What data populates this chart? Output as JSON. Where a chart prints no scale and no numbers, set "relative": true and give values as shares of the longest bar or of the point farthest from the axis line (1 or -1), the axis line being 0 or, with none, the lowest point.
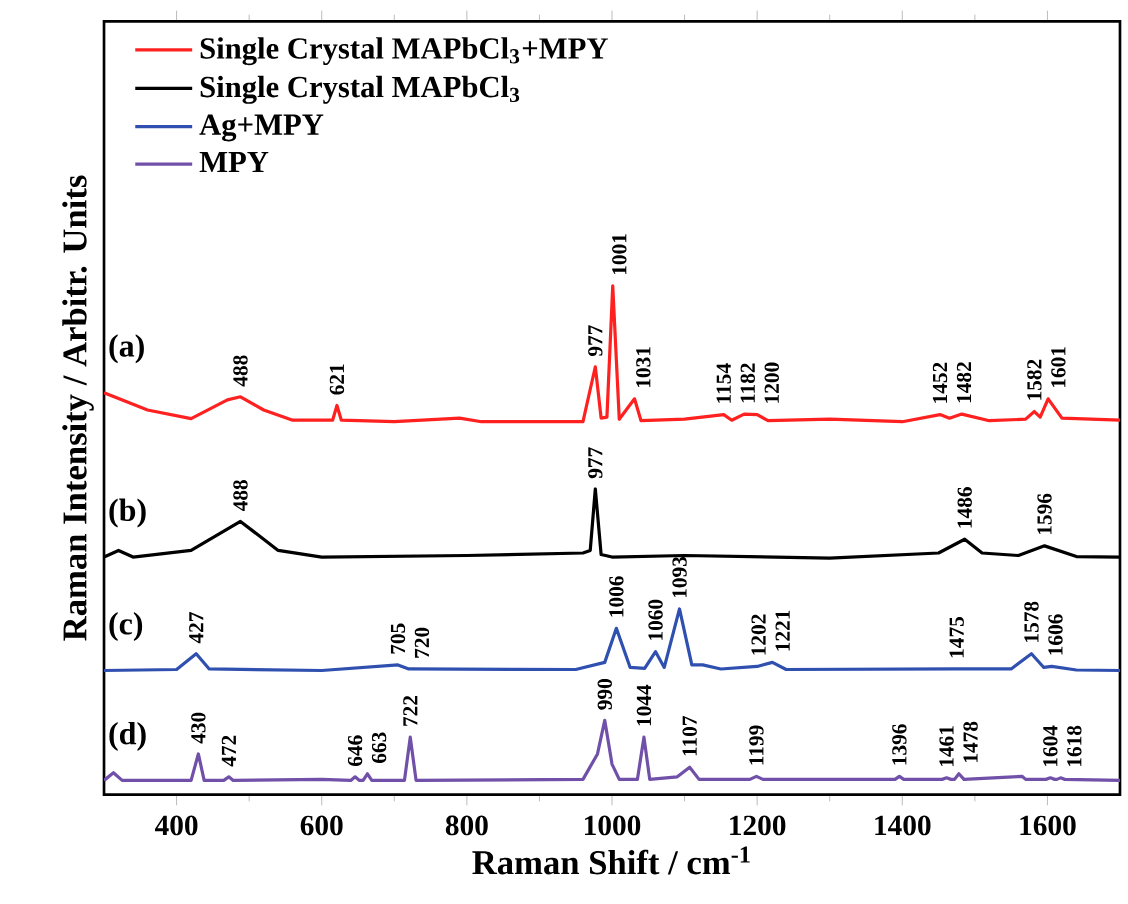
{
  "chart_data": {
    "type": "line",
    "relative": true,
    "xlabel": "Raman Shift / cm$^{-1}$",
    "ylabel": "Raman Intensity / Arbitr. Units",
    "xlim": [
      300,
      1700
    ],
    "xticks": [
      400,
      600,
      800,
      1000,
      1200,
      1400,
      1600
    ],
    "legend": "top left",
    "marker": "none",
    "line_style": "solid",
    "series": [
      {
        "name": "Single Crystal MAPbCl$_{3}$+MPY",
        "color": "#ff2020",
        "x": [
          300,
          360,
          420,
          470,
          488,
          520,
          560,
          615,
          621,
          627,
          700,
          790,
          820,
          960,
          977,
          985,
          993,
          1001,
          1010,
          1031,
          1040,
          1100,
          1154,
          1165,
          1182,
          1200,
          1215,
          1300,
          1400,
          1452,
          1465,
          1482,
          1520,
          1570,
          1582,
          1590,
          1601,
          1620,
          1700
        ],
        "values": [
          0.79,
          0.756,
          0.739,
          0.776,
          0.782,
          0.756,
          0.736,
          0.736,
          0.765,
          0.736,
          0.733,
          0.74,
          0.733,
          0.733,
          0.841,
          0.74,
          0.742,
          1.0,
          0.738,
          0.778,
          0.735,
          0.738,
          0.747,
          0.736,
          0.748,
          0.747,
          0.735,
          0.738,
          0.733,
          0.747,
          0.74,
          0.748,
          0.735,
          0.738,
          0.753,
          0.742,
          0.778,
          0.74,
          0.736
        ]
      },
      {
        "name": "Single Crystal MAPbCl$_{3}$",
        "color": "#000000",
        "x": [
          300,
          320,
          340,
          420,
          488,
          540,
          600,
          800,
          960,
          970,
          977,
          985,
          1000,
          1100,
          1300,
          1450,
          1486,
          1510,
          1560,
          1596,
          1640,
          1700
        ],
        "values": [
          0.467,
          0.48,
          0.467,
          0.48,
          0.537,
          0.48,
          0.467,
          0.47,
          0.475,
          0.48,
          0.601,
          0.472,
          0.467,
          0.47,
          0.465,
          0.475,
          0.502,
          0.475,
          0.47,
          0.489,
          0.468,
          0.467
        ]
      },
      {
        "name": "Ag+MPY",
        "color": "#3050b0",
        "x": [
          300,
          400,
          427,
          445,
          600,
          705,
          720,
          950,
          990,
          1006,
          1025,
          1045,
          1060,
          1072,
          1093,
          1110,
          1125,
          1150,
          1200,
          1221,
          1240,
          1475,
          1550,
          1578,
          1595,
          1606,
          1640,
          1700
        ],
        "values": [
          0.244,
          0.246,
          0.277,
          0.247,
          0.244,
          0.255,
          0.247,
          0.246,
          0.26,
          0.327,
          0.25,
          0.248,
          0.281,
          0.25,
          0.365,
          0.255,
          0.255,
          0.247,
          0.252,
          0.26,
          0.246,
          0.247,
          0.247,
          0.277,
          0.25,
          0.252,
          0.245,
          0.244
        ]
      },
      {
        "name": "MPY",
        "color": "#7050a8",
        "x": [
          300,
          313,
          325,
          420,
          430,
          438,
          465,
          472,
          478,
          600,
          640,
          646,
          652,
          657,
          663,
          669,
          714,
          722,
          730,
          960,
          980,
          990,
          1000,
          1010,
          1035,
          1044,
          1052,
          1090,
          1107,
          1120,
          1190,
          1199,
          1208,
          1390,
          1396,
          1402,
          1455,
          1461,
          1467,
          1472,
          1478,
          1485,
          1565,
          1570,
          1598,
          1604,
          1610,
          1613,
          1618,
          1624,
          1700
        ],
        "values": [
          0.028,
          0.043,
          0.028,
          0.028,
          0.08,
          0.028,
          0.028,
          0.035,
          0.028,
          0.03,
          0.028,
          0.035,
          0.028,
          0.028,
          0.041,
          0.028,
          0.028,
          0.113,
          0.028,
          0.03,
          0.08,
          0.146,
          0.06,
          0.03,
          0.03,
          0.113,
          0.03,
          0.035,
          0.054,
          0.03,
          0.03,
          0.036,
          0.03,
          0.03,
          0.036,
          0.03,
          0.03,
          0.033,
          0.03,
          0.03,
          0.041,
          0.03,
          0.036,
          0.03,
          0.03,
          0.033,
          0.03,
          0.03,
          0.033,
          0.03,
          0.028
        ]
      }
    ],
    "annotations": [
      "(a)",
      "(b)",
      "(c)",
      "(d)",
      {
        "text": "488",
        "x": 488,
        "y": 0.782
      },
      {
        "text": "621",
        "x": 621,
        "y": 0.765
      },
      {
        "text": "977",
        "x": 977,
        "y": 0.841
      },
      {
        "text": "1001",
        "x": 1001,
        "y": 1.0
      },
      {
        "text": "1031",
        "x": 1031,
        "y": 0.778
      },
      {
        "text": "1154",
        "x": 1154,
        "y": 0.747
      },
      {
        "text": "1182",
        "x": 1182,
        "y": 0.748
      },
      {
        "text": "1200",
        "x": 1200,
        "y": 0.747
      },
      {
        "text": "1452",
        "x": 1452,
        "y": 0.747
      },
      {
        "text": "1482",
        "x": 1482,
        "y": 0.748
      },
      {
        "text": "1582",
        "x": 1582,
        "y": 0.753
      },
      {
        "text": "1601",
        "x": 1601,
        "y": 0.778
      },
      {
        "text": "488",
        "x": 488,
        "y": 0.537
      },
      {
        "text": "977",
        "x": 977,
        "y": 0.601
      },
      {
        "text": "1486",
        "x": 1486,
        "y": 0.502
      },
      {
        "text": "1596",
        "x": 1596,
        "y": 0.489
      },
      {
        "text": "427",
        "x": 427,
        "y": 0.277
      },
      {
        "text": "705",
        "x": 705,
        "y": 0.255
      },
      {
        "text": "720",
        "x": 720,
        "y": 0.247
      },
      {
        "text": "1006",
        "x": 1006,
        "y": 0.327
      },
      {
        "text": "1060",
        "x": 1060,
        "y": 0.281
      },
      {
        "text": "1093",
        "x": 1093,
        "y": 0.365
      },
      {
        "text": "1202",
        "x": 1202,
        "y": 0.252
      },
      {
        "text": "1221",
        "x": 1221,
        "y": 0.26
      },
      {
        "text": "1475",
        "x": 1475,
        "y": 0.247
      },
      {
        "text": "1578",
        "x": 1578,
        "y": 0.277
      },
      {
        "text": "1606",
        "x": 1606,
        "y": 0.252
      },
      {
        "text": "430",
        "x": 430,
        "y": 0.08
      },
      {
        "text": "472",
        "x": 472,
        "y": 0.035
      },
      {
        "text": "646",
        "x": 646,
        "y": 0.035
      },
      {
        "text": "663",
        "x": 663,
        "y": 0.041
      },
      {
        "text": "722",
        "x": 722,
        "y": 0.113
      },
      {
        "text": "990",
        "x": 990,
        "y": 0.146
      },
      {
        "text": "1044",
        "x": 1044,
        "y": 0.113
      },
      {
        "text": "1107",
        "x": 1107,
        "y": 0.054
      },
      {
        "text": "1199",
        "x": 1199,
        "y": 0.036
      },
      {
        "text": "1396",
        "x": 1396,
        "y": 0.036
      },
      {
        "text": "1461",
        "x": 1461,
        "y": 0.033
      },
      {
        "text": "1478",
        "x": 1478,
        "y": 0.041
      },
      {
        "text": "1604",
        "x": 1604,
        "y": 0.033
      },
      {
        "text": "1618",
        "x": 1618,
        "y": 0.033
      }
    ]
  }
}
